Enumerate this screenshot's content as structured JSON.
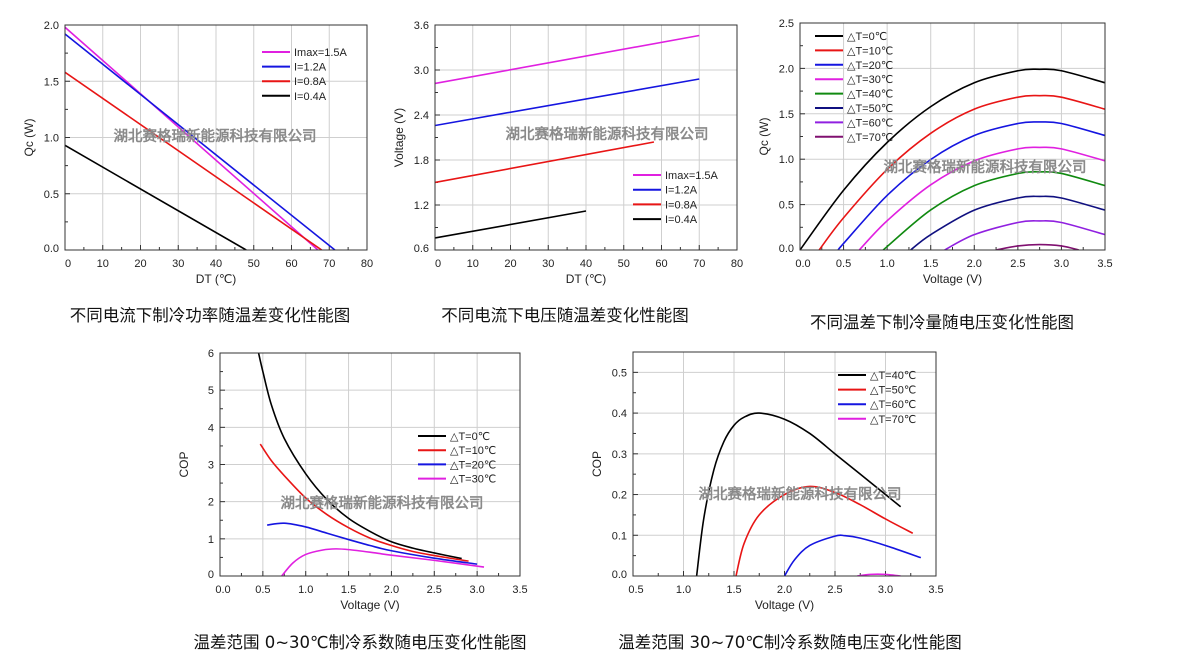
{
  "watermark": "湖北赛格瑞新能源科技有限公司",
  "chart_data": [
    {
      "type": "line",
      "caption": "不同电流下制冷功率随温差变化性能图",
      "xlabel": "DT (℃)",
      "ylabel": "Qc (W)",
      "xlim": [
        0,
        80
      ],
      "ylim": [
        0,
        2.0
      ],
      "xticks": [
        0,
        10,
        20,
        30,
        40,
        50,
        60,
        70,
        80
      ],
      "yticks": [
        "0.0",
        "0.5",
        "1.0",
        "1.5",
        "2.0"
      ],
      "grid": true,
      "legend": "top-right",
      "series": [
        {
          "name": "Imax=1.5A",
          "color": "#e020e0",
          "points": [
            [
              0,
              1.98
            ],
            [
              67,
              0
            ]
          ]
        },
        {
          "name": "I=1.2A",
          "color": "#1515e0",
          "points": [
            [
              0,
              1.92
            ],
            [
              71.5,
              0
            ]
          ]
        },
        {
          "name": "I=0.8A",
          "color": "#e81515",
          "points": [
            [
              0,
              1.58
            ],
            [
              68,
              0
            ]
          ]
        },
        {
          "name": "I=0.4A",
          "color": "#000000",
          "points": [
            [
              0,
              0.93
            ],
            [
              48,
              0
            ]
          ]
        }
      ]
    },
    {
      "type": "line",
      "caption": "不同电流下电压随温差变化性能图",
      "xlabel": "DT (℃)",
      "ylabel": "Voltage (V)",
      "xlim": [
        0,
        80
      ],
      "ylim": [
        0.6,
        3.6
      ],
      "xticks": [
        0,
        10,
        20,
        30,
        40,
        50,
        60,
        70,
        80
      ],
      "yticks": [
        "0.6",
        "1.2",
        "1.8",
        "2.4",
        "3.0",
        "3.6"
      ],
      "grid": true,
      "legend": "bottom-right",
      "series": [
        {
          "name": "Imax=1.5A",
          "color": "#e020e0",
          "points": [
            [
              0,
              2.82
            ],
            [
              70,
              3.46
            ]
          ]
        },
        {
          "name": "I=1.2A",
          "color": "#1515e0",
          "points": [
            [
              0,
              2.26
            ],
            [
              70,
              2.88
            ]
          ]
        },
        {
          "name": "I=0.8A",
          "color": "#e81515",
          "points": [
            [
              0,
              1.5
            ],
            [
              58,
              2.04
            ]
          ]
        },
        {
          "name": "I=0.4A",
          "color": "#000000",
          "points": [
            [
              0,
              0.76
            ],
            [
              40,
              1.12
            ]
          ]
        }
      ]
    },
    {
      "type": "line",
      "caption": "不同温差下制冷量随电压变化性能图",
      "xlabel": "Voltage (V)",
      "ylabel": "Qc (W)",
      "xlim": [
        0,
        3.5
      ],
      "ylim": [
        0,
        2.5
      ],
      "xticks": [
        "0.0",
        "0.5",
        "1.0",
        "1.5",
        "2.0",
        "2.5",
        "3.0",
        "3.5"
      ],
      "yticks": [
        "0.0",
        "0.5",
        "1.0",
        "1.5",
        "2.0",
        "2.5"
      ],
      "grid": true,
      "legend": "top-left",
      "series": [
        {
          "name": "△T=0℃",
          "color": "#000000",
          "points": [
            [
              0,
              0
            ],
            [
              0.5,
              0.658
            ],
            [
              1,
              1.184
            ],
            [
              1.5,
              1.579
            ],
            [
              2,
              1.842
            ],
            [
              2.5,
              1.974
            ],
            [
              2.75,
              1.99
            ],
            [
              3,
              1.974
            ],
            [
              3.5,
              1.842
            ]
          ]
        },
        {
          "name": "△T=10℃",
          "color": "#e81515",
          "points": [
            [
              0.22,
              0
            ],
            [
              0.5,
              0.355
            ],
            [
              1,
              0.887
            ],
            [
              1.5,
              1.285
            ],
            [
              2,
              1.551
            ],
            [
              2.5,
              1.683
            ],
            [
              2.75,
              1.7
            ],
            [
              3,
              1.683
            ],
            [
              3.5,
              1.551
            ]
          ]
        },
        {
          "name": "△T=20℃",
          "color": "#1515e0",
          "points": [
            [
              0.44,
              0
            ],
            [
              0.5,
              0.072
            ],
            [
              1,
              0.601
            ],
            [
              1.5,
              0.997
            ],
            [
              2,
              1.261
            ],
            [
              2.5,
              1.393
            ],
            [
              2.75,
              1.41
            ],
            [
              3,
              1.393
            ],
            [
              3.5,
              1.261
            ]
          ]
        },
        {
          "name": "△T=30℃",
          "color": "#e020e0",
          "points": [
            [
              0.68,
              0
            ],
            [
              1,
              0.322
            ],
            [
              1.5,
              0.718
            ],
            [
              2,
              0.982
            ],
            [
              2.5,
              1.114
            ],
            [
              2.75,
              1.13
            ],
            [
              3,
              1.114
            ],
            [
              3.5,
              0.982
            ]
          ]
        },
        {
          "name": "△T=40℃",
          "color": "#108a10",
          "points": [
            [
              0.96,
              0
            ],
            [
              1,
              0.038
            ],
            [
              1.5,
              0.441
            ],
            [
              2,
              0.709
            ],
            [
              2.5,
              0.843
            ],
            [
              2.75,
              0.86
            ],
            [
              3,
              0.843
            ],
            [
              3.5,
              0.709
            ]
          ]
        },
        {
          "name": "△T=50℃",
          "color": "#101080",
          "points": [
            [
              1.27,
              0
            ],
            [
              1.5,
              0.169
            ],
            [
              2,
              0.439
            ],
            [
              2.5,
              0.573
            ],
            [
              2.75,
              0.59
            ],
            [
              3,
              0.573
            ],
            [
              3.5,
              0.439
            ]
          ]
        },
        {
          "name": "△T=60℃",
          "color": "#9020e0",
          "points": [
            [
              1.66,
              0
            ],
            [
              2,
              0.169
            ],
            [
              2.5,
              0.303
            ],
            [
              2.75,
              0.32
            ],
            [
              3,
              0.303
            ],
            [
              3.5,
              0.169
            ]
          ]
        },
        {
          "name": "△T=70℃",
          "color": "#801070",
          "points": [
            [
              2.25,
              0
            ],
            [
              2.5,
              0.045
            ],
            [
              2.75,
              0.06
            ],
            [
              3,
              0.045
            ],
            [
              3.2,
              0
            ]
          ]
        }
      ]
    },
    {
      "type": "line",
      "caption": "温差范围 0~30℃制冷系数随电压变化性能图",
      "xlabel": "Voltage (V)",
      "ylabel": "COP",
      "xlim": [
        0,
        3.5
      ],
      "ylim": [
        0,
        6
      ],
      "xticks": [
        "0.0",
        "0.5",
        "1.0",
        "1.5",
        "2.0",
        "2.5",
        "3.0",
        "3.5"
      ],
      "yticks": [
        "0",
        "1",
        "2",
        "3",
        "4",
        "5",
        "6"
      ],
      "grid": true,
      "legend": "right",
      "series": [
        {
          "name": "△T=0℃",
          "color": "#000000",
          "points": [
            [
              0.45,
              6.0
            ],
            [
              0.5,
              5.5
            ],
            [
              0.6,
              4.6
            ],
            [
              0.75,
              3.7
            ],
            [
              1.0,
              2.75
            ],
            [
              1.25,
              2.05
            ],
            [
              1.5,
              1.55
            ],
            [
              1.75,
              1.2
            ],
            [
              2.0,
              0.92
            ],
            [
              2.25,
              0.75
            ],
            [
              2.5,
              0.62
            ],
            [
              2.82,
              0.47
            ]
          ]
        },
        {
          "name": "△T=10℃",
          "color": "#e81515",
          "points": [
            [
              0.47,
              3.55
            ],
            [
              0.6,
              3.1
            ],
            [
              0.75,
              2.7
            ],
            [
              1.0,
              2.1
            ],
            [
              1.25,
              1.65
            ],
            [
              1.5,
              1.3
            ],
            [
              1.75,
              1.02
            ],
            [
              2.0,
              0.82
            ],
            [
              2.25,
              0.66
            ],
            [
              2.5,
              0.55
            ],
            [
              2.9,
              0.4
            ]
          ]
        },
        {
          "name": "△T=20℃",
          "color": "#1515e0",
          "points": [
            [
              0.55,
              1.37
            ],
            [
              0.75,
              1.42
            ],
            [
              1.0,
              1.32
            ],
            [
              1.25,
              1.15
            ],
            [
              1.5,
              0.98
            ],
            [
              1.75,
              0.82
            ],
            [
              2.0,
              0.68
            ],
            [
              2.5,
              0.48
            ],
            [
              3.0,
              0.32
            ]
          ]
        },
        {
          "name": "△T=30℃",
          "color": "#e020e0",
          "points": [
            [
              0.72,
              0
            ],
            [
              0.85,
              0.35
            ],
            [
              1.0,
              0.58
            ],
            [
              1.2,
              0.7
            ],
            [
              1.35,
              0.73
            ],
            [
              1.5,
              0.71
            ],
            [
              1.75,
              0.64
            ],
            [
              2.0,
              0.56
            ],
            [
              2.5,
              0.42
            ],
            [
              3.08,
              0.24
            ]
          ]
        }
      ]
    },
    {
      "type": "line",
      "caption": "温差范围 30~70℃制冷系数随电压变化性能图",
      "xlabel": "Voltage (V)",
      "ylabel": "COP",
      "xlim": [
        0.5,
        3.5
      ],
      "ylim": [
        0,
        0.55
      ],
      "xticks": [
        "0.5",
        "1.0",
        "1.5",
        "2.0",
        "2.5",
        "3.0",
        "3.5"
      ],
      "yticks": [
        "0.0",
        "0.1",
        "0.2",
        "0.3",
        "0.4",
        "0.5"
      ],
      "grid": true,
      "legend": "top-right",
      "series": [
        {
          "name": "△T=40℃",
          "color": "#000000",
          "points": [
            [
              1.13,
              0
            ],
            [
              1.2,
              0.14
            ],
            [
              1.3,
              0.26
            ],
            [
              1.4,
              0.33
            ],
            [
              1.5,
              0.37
            ],
            [
              1.6,
              0.39
            ],
            [
              1.75,
              0.4
            ],
            [
              2.0,
              0.385
            ],
            [
              2.25,
              0.35
            ],
            [
              2.5,
              0.3
            ],
            [
              2.75,
              0.25
            ],
            [
              3.0,
              0.2
            ],
            [
              3.15,
              0.17
            ]
          ]
        },
        {
          "name": "△T=50℃",
          "color": "#e81515",
          "points": [
            [
              1.52,
              0
            ],
            [
              1.6,
              0.08
            ],
            [
              1.75,
              0.15
            ],
            [
              2.0,
              0.2
            ],
            [
              2.25,
              0.22
            ],
            [
              2.5,
              0.205
            ],
            [
              2.75,
              0.175
            ],
            [
              3.0,
              0.14
            ],
            [
              3.27,
              0.105
            ]
          ]
        },
        {
          "name": "△T=60℃",
          "color": "#1515e0",
          "points": [
            [
              2.0,
              0
            ],
            [
              2.1,
              0.04
            ],
            [
              2.25,
              0.075
            ],
            [
              2.5,
              0.098
            ],
            [
              2.6,
              0.099
            ],
            [
              2.75,
              0.093
            ],
            [
              3.0,
              0.075
            ],
            [
              3.35,
              0.045
            ]
          ]
        },
        {
          "name": "△T=70℃",
          "color": "#e020e0",
          "points": [
            [
              2.72,
              0
            ],
            [
              2.85,
              0.004
            ],
            [
              3.0,
              0.004
            ],
            [
              3.15,
              0
            ]
          ]
        }
      ]
    }
  ]
}
